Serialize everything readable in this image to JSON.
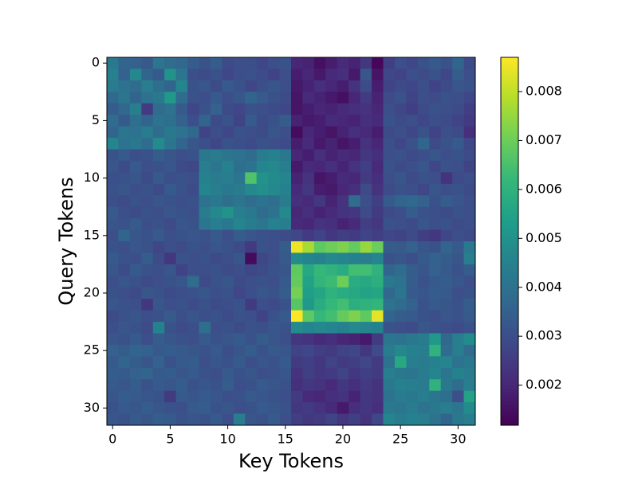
{
  "chart_data": {
    "type": "heatmap",
    "x_label": "Key Tokens",
    "y_label": "Query Tokens",
    "xlim": [
      -0.5,
      31.5
    ],
    "ylim": [
      31.5,
      -0.5
    ],
    "xticks": [
      0,
      5,
      10,
      15,
      20,
      25,
      30
    ],
    "yticks": [
      0,
      5,
      10,
      15,
      20,
      25,
      30
    ],
    "colormap": "viridis",
    "clim": [
      0.00118,
      0.0087
    ],
    "colorbar_ticks": [
      0.002,
      0.003,
      0.004,
      0.005,
      0.006,
      0.007,
      0.008
    ],
    "values": [
      [
        0.0042,
        0.0036,
        0.0035,
        0.0033,
        0.0041,
        0.0038,
        0.0037,
        0.0034,
        0.0031,
        0.0034,
        0.0029,
        0.003,
        0.003,
        0.0028,
        0.003,
        0.0031,
        0.002,
        0.0019,
        0.0015,
        0.0018,
        0.0021,
        0.0019,
        0.0024,
        0.0013,
        0.0026,
        0.003,
        0.0028,
        0.0031,
        0.0033,
        0.0031,
        0.0036,
        0.0029
      ],
      [
        0.0045,
        0.0035,
        0.0047,
        0.0036,
        0.0033,
        0.005,
        0.0041,
        0.003,
        0.0029,
        0.0031,
        0.0028,
        0.003,
        0.0031,
        0.0029,
        0.0027,
        0.003,
        0.0018,
        0.002,
        0.0017,
        0.0021,
        0.0022,
        0.0017,
        0.0032,
        0.0016,
        0.0028,
        0.0027,
        0.003,
        0.0029,
        0.0031,
        0.0028,
        0.0034,
        0.003
      ],
      [
        0.0043,
        0.004,
        0.0038,
        0.0044,
        0.0039,
        0.0036,
        0.0046,
        0.0031,
        0.0032,
        0.0029,
        0.0033,
        0.0031,
        0.0028,
        0.003,
        0.0032,
        0.003,
        0.0017,
        0.0019,
        0.0022,
        0.002,
        0.0018,
        0.0023,
        0.0029,
        0.0018,
        0.0027,
        0.0029,
        0.0028,
        0.003,
        0.0027,
        0.0029,
        0.0032,
        0.0031
      ],
      [
        0.0037,
        0.0041,
        0.0036,
        0.004,
        0.0042,
        0.0052,
        0.0038,
        0.0031,
        0.003,
        0.0033,
        0.003,
        0.0032,
        0.0036,
        0.0033,
        0.0031,
        0.0029,
        0.0016,
        0.0021,
        0.0019,
        0.0017,
        0.0015,
        0.002,
        0.0025,
        0.0019,
        0.0029,
        0.0031,
        0.0027,
        0.003,
        0.0029,
        0.0031,
        0.003,
        0.0028
      ],
      [
        0.0034,
        0.0037,
        0.0044,
        0.0025,
        0.0038,
        0.004,
        0.0033,
        0.0028,
        0.0031,
        0.0035,
        0.0029,
        0.0028,
        0.0031,
        0.003,
        0.0029,
        0.0028,
        0.0016,
        0.0018,
        0.002,
        0.0019,
        0.0021,
        0.0022,
        0.0023,
        0.002,
        0.003,
        0.0028,
        0.0026,
        0.0029,
        0.0031,
        0.003,
        0.0029,
        0.0026
      ],
      [
        0.0038,
        0.0033,
        0.0039,
        0.0036,
        0.004,
        0.0039,
        0.0035,
        0.003,
        0.0036,
        0.0029,
        0.0031,
        0.0027,
        0.0033,
        0.0029,
        0.0031,
        0.0034,
        0.0019,
        0.0017,
        0.0018,
        0.0021,
        0.002,
        0.0019,
        0.0022,
        0.0021,
        0.0031,
        0.0029,
        0.003,
        0.0028,
        0.003,
        0.0029,
        0.0027,
        0.0025
      ],
      [
        0.0036,
        0.0041,
        0.004,
        0.0043,
        0.0038,
        0.0042,
        0.004,
        0.0037,
        0.0027,
        0.003,
        0.0028,
        0.0031,
        0.003,
        0.0029,
        0.0032,
        0.003,
        0.0014,
        0.002,
        0.0018,
        0.0016,
        0.0019,
        0.0022,
        0.0021,
        0.0018,
        0.0029,
        0.003,
        0.0028,
        0.0031,
        0.0027,
        0.003,
        0.0029,
        0.0022
      ],
      [
        0.0046,
        0.004,
        0.0042,
        0.0038,
        0.0048,
        0.0041,
        0.0036,
        0.0032,
        0.003,
        0.0028,
        0.0031,
        0.003,
        0.0029,
        0.0031,
        0.003,
        0.0029,
        0.0018,
        0.0021,
        0.0017,
        0.0019,
        0.0016,
        0.0018,
        0.0023,
        0.002,
        0.003,
        0.0028,
        0.0031,
        0.0036,
        0.0029,
        0.0031,
        0.0033,
        0.0028
      ],
      [
        0.0031,
        0.0033,
        0.003,
        0.0031,
        0.0034,
        0.0032,
        0.003,
        0.0031,
        0.0042,
        0.0043,
        0.0041,
        0.004,
        0.0038,
        0.0043,
        0.0045,
        0.0042,
        0.002,
        0.0018,
        0.0022,
        0.0019,
        0.0021,
        0.002,
        0.0024,
        0.0022,
        0.003,
        0.0031,
        0.0029,
        0.003,
        0.0032,
        0.003,
        0.0031,
        0.0029
      ],
      [
        0.0032,
        0.0029,
        0.0033,
        0.003,
        0.0031,
        0.0032,
        0.0029,
        0.0028,
        0.0044,
        0.0041,
        0.0045,
        0.0039,
        0.004,
        0.0046,
        0.0047,
        0.0044,
        0.0017,
        0.0021,
        0.002,
        0.0022,
        0.0019,
        0.0023,
        0.0026,
        0.0021,
        0.0031,
        0.0029,
        0.003,
        0.0032,
        0.0028,
        0.0031,
        0.003,
        0.0027
      ],
      [
        0.003,
        0.0031,
        0.0032,
        0.0029,
        0.0033,
        0.003,
        0.0031,
        0.003,
        0.0045,
        0.0043,
        0.0044,
        0.0041,
        0.0066,
        0.005,
        0.0048,
        0.0046,
        0.0019,
        0.0023,
        0.0016,
        0.0018,
        0.0021,
        0.002,
        0.0025,
        0.0022,
        0.003,
        0.0032,
        0.0029,
        0.0031,
        0.003,
        0.0023,
        0.0029,
        0.003
      ],
      [
        0.0031,
        0.0032,
        0.003,
        0.0031,
        0.0029,
        0.0033,
        0.0031,
        0.0029,
        0.0046,
        0.0044,
        0.0042,
        0.0043,
        0.0047,
        0.0049,
        0.0047,
        0.0045,
        0.0021,
        0.0024,
        0.0018,
        0.0017,
        0.002,
        0.0022,
        0.0029,
        0.0023,
        0.0029,
        0.0031,
        0.003,
        0.0028,
        0.0032,
        0.003,
        0.0031,
        0.0029
      ],
      [
        0.003,
        0.0029,
        0.0031,
        0.003,
        0.0032,
        0.0031,
        0.003,
        0.0031,
        0.004,
        0.0042,
        0.0039,
        0.0041,
        0.0038,
        0.004,
        0.0039,
        0.0043,
        0.0022,
        0.0021,
        0.0024,
        0.0019,
        0.0023,
        0.0038,
        0.003,
        0.0026,
        0.0033,
        0.0036,
        0.0037,
        0.0035,
        0.0031,
        0.0034,
        0.0032,
        0.003
      ],
      [
        0.0033,
        0.003,
        0.0029,
        0.0031,
        0.003,
        0.0032,
        0.0031,
        0.003,
        0.0043,
        0.0047,
        0.005,
        0.0044,
        0.0042,
        0.0038,
        0.004,
        0.0047,
        0.002,
        0.0022,
        0.0019,
        0.0021,
        0.0023,
        0.0024,
        0.0029,
        0.0025,
        0.0029,
        0.003,
        0.0034,
        0.0031,
        0.003,
        0.0029,
        0.0031,
        0.003
      ],
      [
        0.0032,
        0.0031,
        0.0033,
        0.003,
        0.0031,
        0.0029,
        0.0032,
        0.0031,
        0.0041,
        0.0044,
        0.0042,
        0.0046,
        0.0043,
        0.0041,
        0.0045,
        0.0044,
        0.0021,
        0.002,
        0.0023,
        0.0022,
        0.0019,
        0.0021,
        0.0026,
        0.0024,
        0.0031,
        0.003,
        0.0029,
        0.0032,
        0.003,
        0.0031,
        0.0029,
        0.003
      ],
      [
        0.003,
        0.0036,
        0.0032,
        0.0031,
        0.0033,
        0.003,
        0.0031,
        0.0032,
        0.0031,
        0.0033,
        0.003,
        0.0034,
        0.0032,
        0.0031,
        0.003,
        0.0029,
        0.0028,
        0.0025,
        0.0027,
        0.0024,
        0.0026,
        0.0025,
        0.0027,
        0.0026,
        0.0028,
        0.0027,
        0.0029,
        0.0026,
        0.0024,
        0.0028,
        0.003,
        0.0029
      ],
      [
        0.0031,
        0.003,
        0.0032,
        0.0031,
        0.0028,
        0.003,
        0.0029,
        0.0031,
        0.003,
        0.0032,
        0.0031,
        0.0029,
        0.0025,
        0.0031,
        0.003,
        0.0034,
        0.0085,
        0.0077,
        0.0068,
        0.007,
        0.0072,
        0.0069,
        0.0075,
        0.007,
        0.0034,
        0.0033,
        0.0035,
        0.0032,
        0.0031,
        0.0036,
        0.0033,
        0.0042
      ],
      [
        0.0033,
        0.0031,
        0.003,
        0.0034,
        0.0029,
        0.0024,
        0.0031,
        0.003,
        0.0031,
        0.0029,
        0.003,
        0.0032,
        0.0014,
        0.0028,
        0.003,
        0.0033,
        0.0048,
        0.0046,
        0.0045,
        0.0047,
        0.0046,
        0.0045,
        0.0044,
        0.0046,
        0.0031,
        0.0032,
        0.003,
        0.0033,
        0.0035,
        0.0034,
        0.0032,
        0.0044
      ],
      [
        0.0032,
        0.0029,
        0.0033,
        0.0031,
        0.003,
        0.0032,
        0.0027,
        0.003,
        0.003,
        0.0031,
        0.0029,
        0.003,
        0.0028,
        0.0029,
        0.0031,
        0.0032,
        0.0068,
        0.0057,
        0.0062,
        0.006,
        0.0058,
        0.0064,
        0.0064,
        0.006,
        0.0036,
        0.0038,
        0.0034,
        0.0032,
        0.0035,
        0.0033,
        0.0031,
        0.0034
      ],
      [
        0.003,
        0.0032,
        0.0031,
        0.0029,
        0.003,
        0.0031,
        0.0032,
        0.0038,
        0.0029,
        0.0031,
        0.0032,
        0.0029,
        0.003,
        0.0031,
        0.003,
        0.0033,
        0.0069,
        0.0055,
        0.0061,
        0.0063,
        0.007,
        0.0058,
        0.0057,
        0.0059,
        0.0042,
        0.004,
        0.0034,
        0.0031,
        0.0033,
        0.0034,
        0.0032,
        0.003
      ],
      [
        0.0031,
        0.003,
        0.0029,
        0.0032,
        0.0031,
        0.0029,
        0.003,
        0.0031,
        0.0032,
        0.003,
        0.0031,
        0.0028,
        0.003,
        0.0032,
        0.0031,
        0.0034,
        0.0071,
        0.0054,
        0.0056,
        0.006,
        0.0058,
        0.0057,
        0.0055,
        0.0056,
        0.0037,
        0.0041,
        0.0033,
        0.0032,
        0.0034,
        0.0033,
        0.003,
        0.0031
      ],
      [
        0.0032,
        0.0031,
        0.003,
        0.0024,
        0.0032,
        0.003,
        0.0031,
        0.0029,
        0.0031,
        0.0029,
        0.003,
        0.0031,
        0.0025,
        0.003,
        0.0029,
        0.0031,
        0.0067,
        0.0052,
        0.0058,
        0.0062,
        0.0064,
        0.0059,
        0.006,
        0.0061,
        0.004,
        0.0038,
        0.0035,
        0.0031,
        0.0033,
        0.0032,
        0.0031,
        0.0034
      ],
      [
        0.0029,
        0.0031,
        0.0032,
        0.003,
        0.0031,
        0.0033,
        0.003,
        0.0032,
        0.003,
        0.0031,
        0.0029,
        0.0031,
        0.003,
        0.0027,
        0.0031,
        0.0033,
        0.0087,
        0.0068,
        0.0062,
        0.0064,
        0.0069,
        0.0072,
        0.0068,
        0.0084,
        0.0036,
        0.0034,
        0.0033,
        0.0031,
        0.003,
        0.0032,
        0.0031,
        0.0033
      ],
      [
        0.003,
        0.0032,
        0.0031,
        0.0029,
        0.0045,
        0.0031,
        0.0029,
        0.003,
        0.0039,
        0.003,
        0.0031,
        0.0029,
        0.0031,
        0.003,
        0.0032,
        0.0031,
        0.0048,
        0.0046,
        0.0047,
        0.0046,
        0.0045,
        0.0047,
        0.0046,
        0.0045,
        0.0031,
        0.003,
        0.0029,
        0.0032,
        0.0031,
        0.003,
        0.0029,
        0.0031
      ],
      [
        0.0032,
        0.0031,
        0.0033,
        0.003,
        0.0034,
        0.0032,
        0.0031,
        0.003,
        0.0033,
        0.0031,
        0.0032,
        0.0033,
        0.0031,
        0.0034,
        0.0032,
        0.003,
        0.0024,
        0.0023,
        0.0021,
        0.0022,
        0.002,
        0.0019,
        0.0017,
        0.0025,
        0.0041,
        0.004,
        0.0042,
        0.0043,
        0.0052,
        0.0037,
        0.0044,
        0.0048
      ],
      [
        0.0035,
        0.0034,
        0.0036,
        0.0035,
        0.0033,
        0.0034,
        0.0033,
        0.0032,
        0.0031,
        0.0033,
        0.003,
        0.0032,
        0.0034,
        0.0031,
        0.0033,
        0.0032,
        0.0027,
        0.0028,
        0.0026,
        0.0025,
        0.0027,
        0.0028,
        0.0024,
        0.0029,
        0.0043,
        0.0047,
        0.0045,
        0.0044,
        0.006,
        0.0038,
        0.0044,
        0.0038
      ],
      [
        0.0033,
        0.0036,
        0.0034,
        0.0032,
        0.0035,
        0.0031,
        0.0033,
        0.0034,
        0.003,
        0.0032,
        0.0031,
        0.0033,
        0.003,
        0.0032,
        0.0031,
        0.0033,
        0.0025,
        0.0026,
        0.0024,
        0.0027,
        0.0025,
        0.0026,
        0.0028,
        0.0025,
        0.004,
        0.0057,
        0.0044,
        0.0043,
        0.0045,
        0.0046,
        0.004,
        0.0042
      ],
      [
        0.0034,
        0.0033,
        0.0035,
        0.0036,
        0.0033,
        0.0034,
        0.0032,
        0.0033,
        0.0031,
        0.003,
        0.0033,
        0.0031,
        0.0032,
        0.003,
        0.0031,
        0.0032,
        0.0023,
        0.0026,
        0.0024,
        0.0025,
        0.0027,
        0.0024,
        0.0026,
        0.0025,
        0.0044,
        0.0042,
        0.0041,
        0.0043,
        0.0046,
        0.0041,
        0.0045,
        0.0043
      ],
      [
        0.0033,
        0.0032,
        0.0034,
        0.0031,
        0.0033,
        0.0032,
        0.0034,
        0.0031,
        0.0032,
        0.0031,
        0.0034,
        0.003,
        0.0031,
        0.0033,
        0.0032,
        0.0031,
        0.0022,
        0.0024,
        0.0023,
        0.0021,
        0.0024,
        0.0022,
        0.0025,
        0.0023,
        0.0042,
        0.0045,
        0.0044,
        0.0043,
        0.006,
        0.0042,
        0.0038,
        0.0044
      ],
      [
        0.0032,
        0.0034,
        0.0033,
        0.0032,
        0.0031,
        0.0025,
        0.0033,
        0.0032,
        0.0033,
        0.0032,
        0.003,
        0.0031,
        0.0033,
        0.0032,
        0.0031,
        0.003,
        0.0025,
        0.0021,
        0.002,
        0.0022,
        0.0023,
        0.0019,
        0.0024,
        0.0023,
        0.004,
        0.0043,
        0.0042,
        0.0044,
        0.0041,
        0.0039,
        0.003,
        0.0055
      ],
      [
        0.0031,
        0.0033,
        0.0032,
        0.0034,
        0.0032,
        0.0031,
        0.003,
        0.0033,
        0.0034,
        0.0031,
        0.0032,
        0.003,
        0.0031,
        0.0033,
        0.0032,
        0.0031,
        0.0024,
        0.0025,
        0.0023,
        0.0021,
        0.0017,
        0.0022,
        0.0024,
        0.0022,
        0.0042,
        0.0041,
        0.0043,
        0.004,
        0.0042,
        0.0044,
        0.0041,
        0.0048
      ],
      [
        0.0032,
        0.0031,
        0.0033,
        0.0032,
        0.0034,
        0.0033,
        0.0031,
        0.0032,
        0.0031,
        0.0033,
        0.003,
        0.0044,
        0.0032,
        0.0031,
        0.0033,
        0.003,
        0.0026,
        0.0024,
        0.0025,
        0.0027,
        0.0024,
        0.0026,
        0.0023,
        0.0028,
        0.0046,
        0.0043,
        0.0045,
        0.0044,
        0.004,
        0.0036,
        0.0042,
        0.0044
      ]
    ]
  }
}
